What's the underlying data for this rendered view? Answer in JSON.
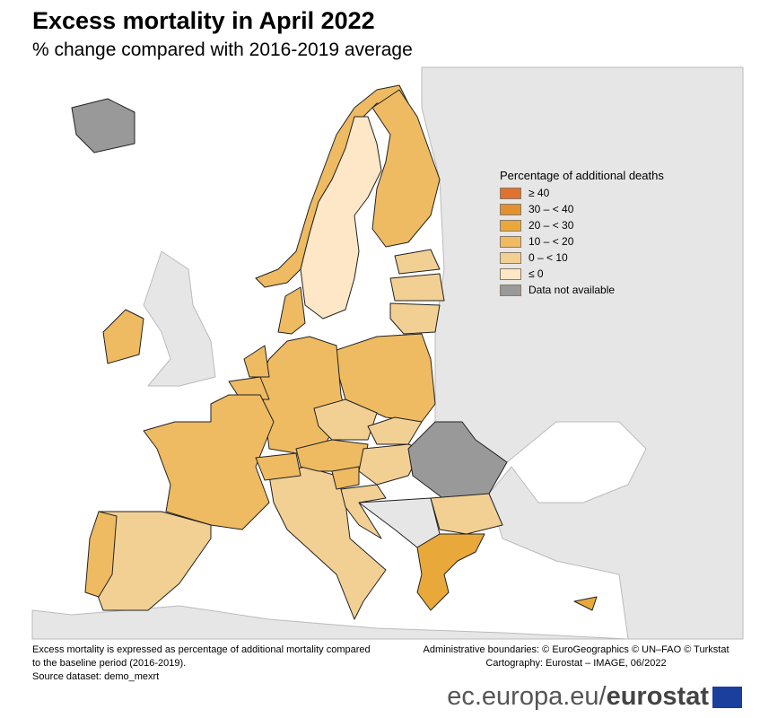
{
  "title": "Excess mortality in April 2022",
  "subtitle": "% change compared with 2016-2019 average",
  "legend": {
    "title": "Percentage of additional deaths",
    "items": [
      {
        "label": "≥ 40",
        "color": "#e0712f"
      },
      {
        "label": "30 – < 40",
        "color": "#e39130"
      },
      {
        "label": "20 – < 30",
        "color": "#e9a93a"
      },
      {
        "label": "10 – < 20",
        "color": "#eebb62"
      },
      {
        "label": "0 – < 10",
        "color": "#f2d094"
      },
      {
        "label": "≤ 0",
        "color": "#fde7c6"
      },
      {
        "label": "Data not available",
        "color": "#999999"
      }
    ]
  },
  "region_classes": {
    "IS": 6,
    "NO": 3,
    "SE": 5,
    "FI": 3,
    "EE": 4,
    "LV": 4,
    "LT": 4,
    "PL": 3,
    "DE": 3,
    "DK": 3,
    "NL": 3,
    "BE": 3,
    "FR": 3,
    "IE": 3,
    "ES": 4,
    "PT": 3,
    "IT": 4,
    "CH": 3,
    "AT": 3,
    "CZ": 4,
    "SK": 4,
    "HU": 4,
    "SI": 3,
    "HR": 4,
    "RO": 6,
    "BG": 4,
    "GR": 2,
    "CY": 2
  },
  "colors": {
    "sea": "#ffffff",
    "non_covered_land": "#e6e6e6",
    "border": "#222222"
  },
  "footer": {
    "note_lines": [
      "Excess mortality is expressed as percentage of additional mortality compared",
      "to the baseline period (2016-2019).",
      "Source dataset: demo_mexrt"
    ],
    "credit_lines": [
      "Administrative boundaries: © EuroGeographics © UN–FAO © Turkstat",
      "Cartography: Eurostat – IMAGE, 06/2022"
    ],
    "brand_prefix": "ec.europa.eu/",
    "brand_name": "eurostat"
  }
}
